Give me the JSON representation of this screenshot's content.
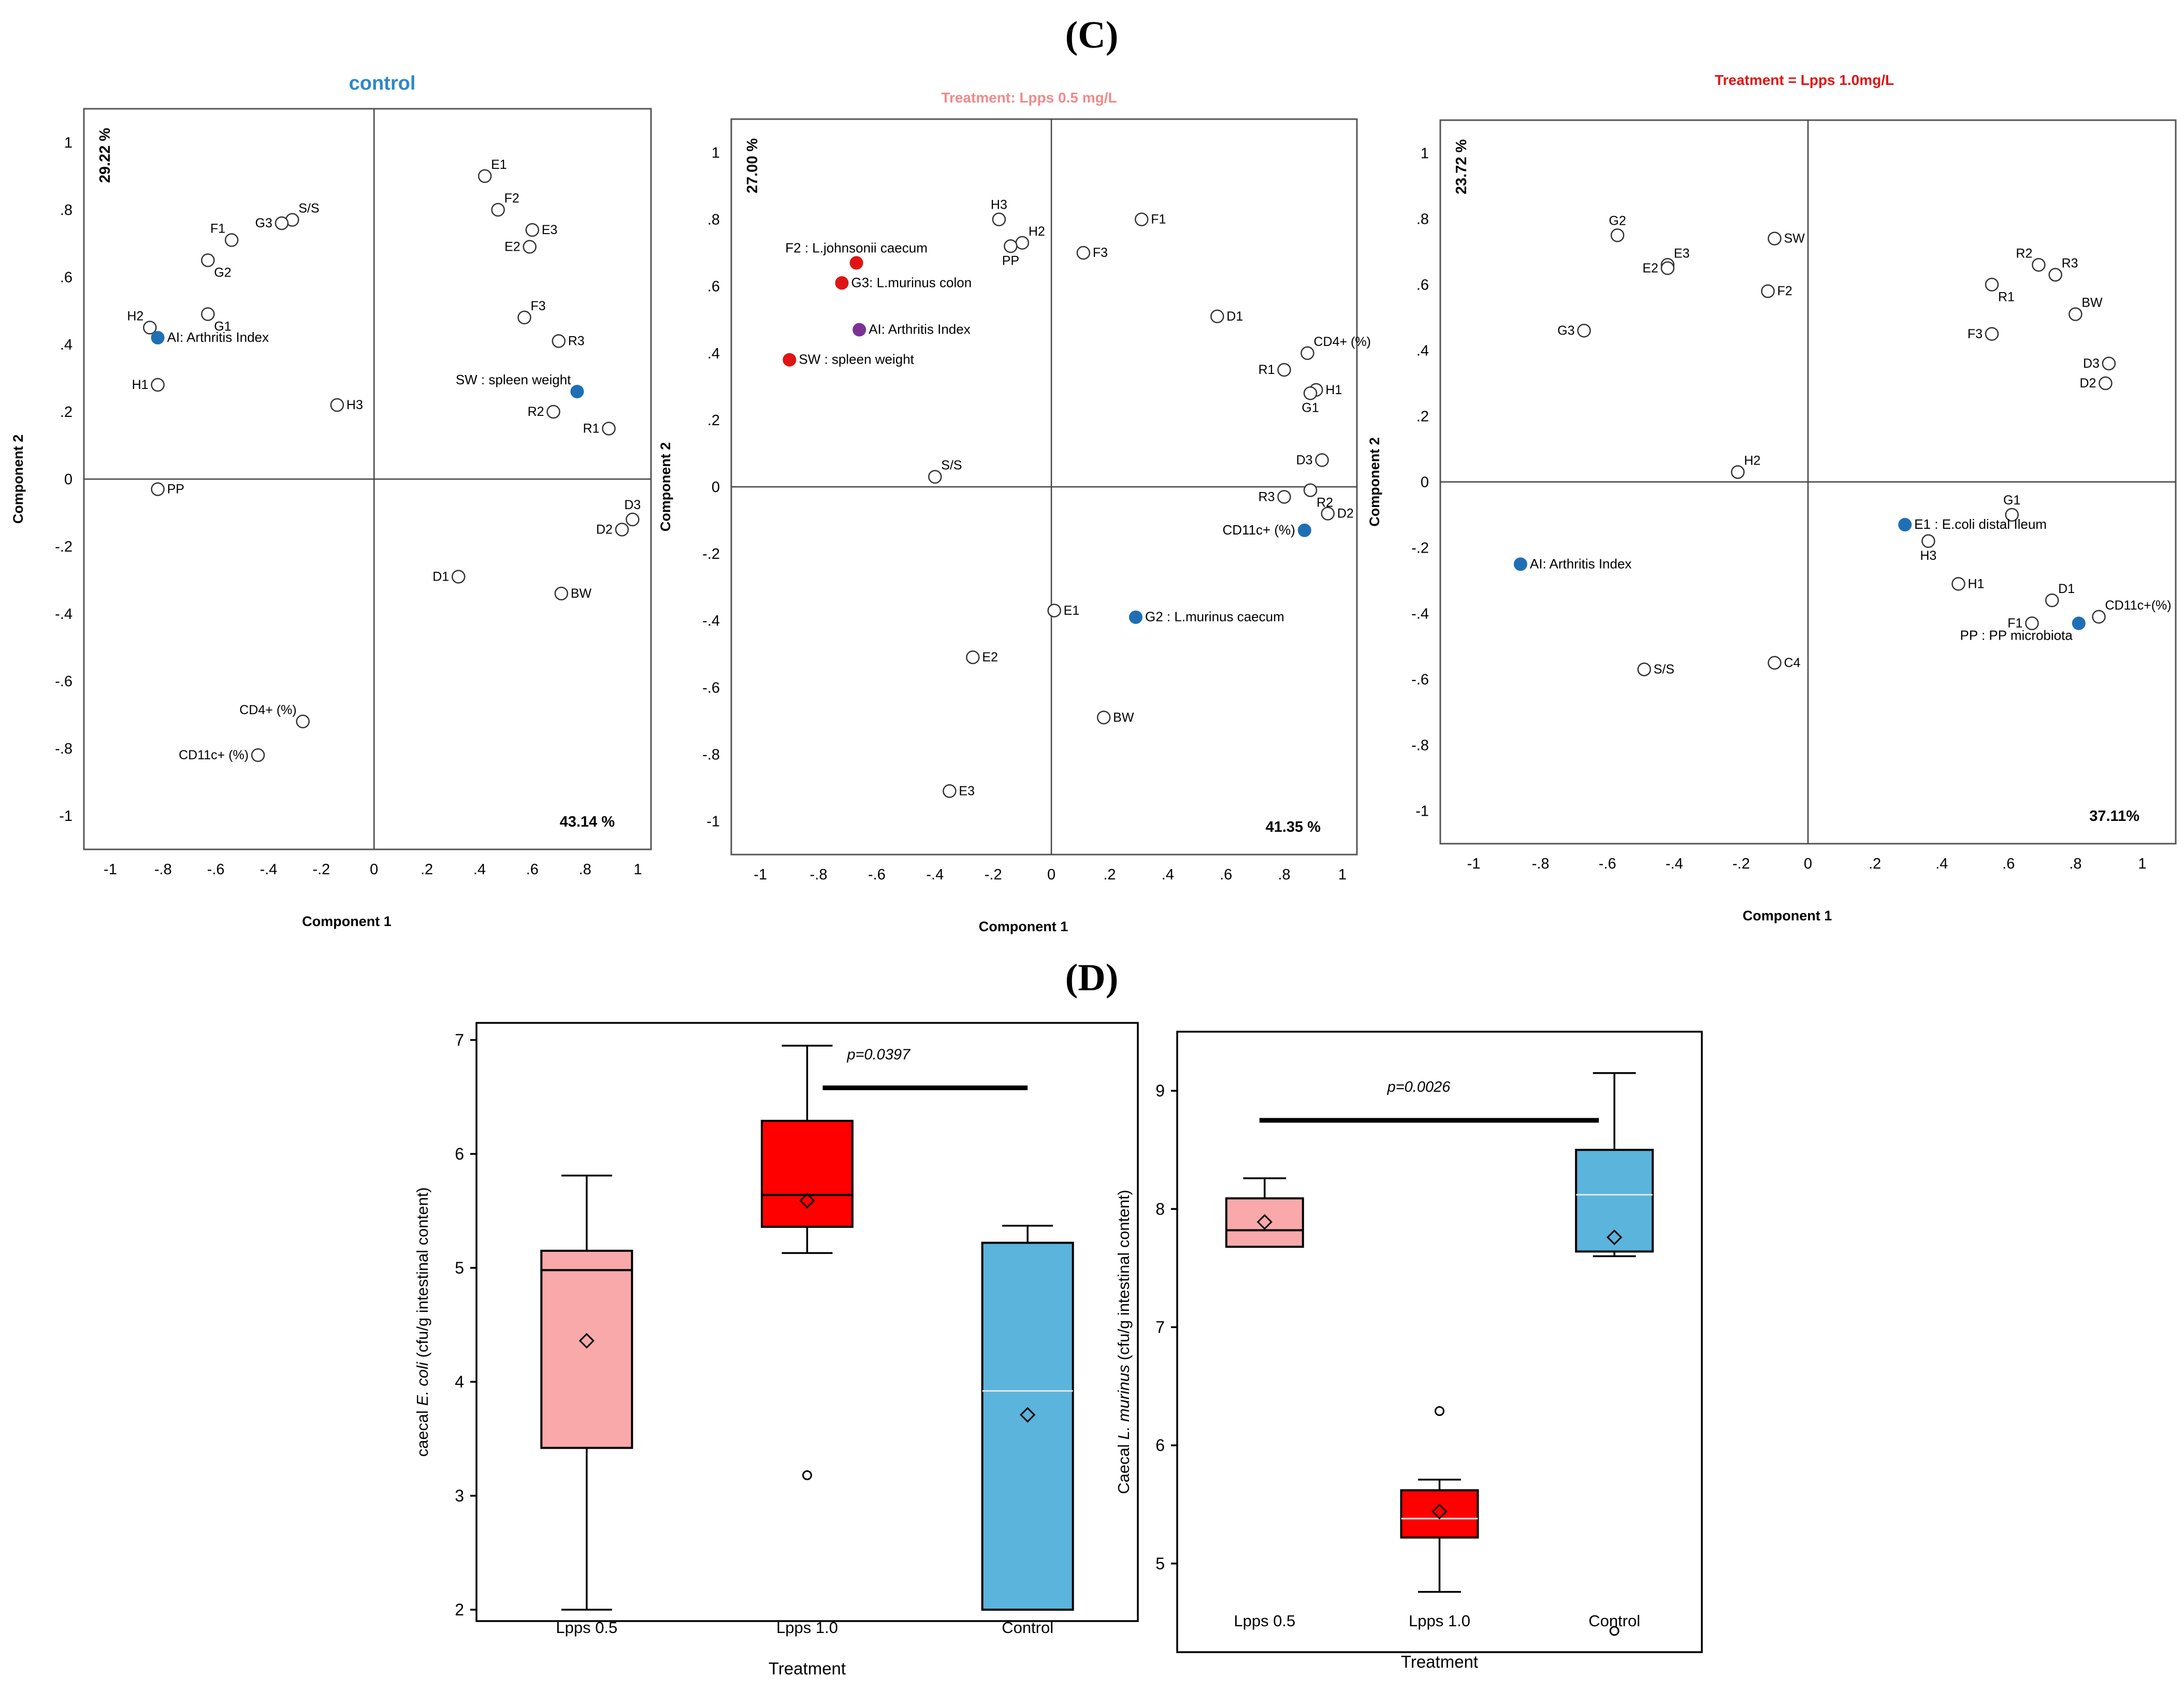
{
  "section_c_label": "(C)",
  "section_d_label": "(D)",
  "chart_data": [
    {
      "type": "scatter",
      "title": "control",
      "title_color": "#2c88c9",
      "xlabel": "Component 1",
      "ylabel": "Component 2",
      "x_variance": "43.14 %",
      "y_variance": "29.22 %",
      "xlim": [
        -1.1,
        1.05
      ],
      "ylim": [
        -1.1,
        1.1
      ],
      "xticks": [
        -1,
        -0.8,
        -0.6,
        -0.4,
        -0.2,
        0,
        0.2,
        0.4,
        0.6,
        0.8,
        1
      ],
      "yticks": [
        -1,
        -0.8,
        -0.6,
        -0.4,
        -0.2,
        0,
        0.2,
        0.4,
        0.6,
        0.8,
        1
      ],
      "points": [
        {
          "label": "E1",
          "x": 0.42,
          "y": 0.9,
          "ls": "ne"
        },
        {
          "label": "F2",
          "x": 0.47,
          "y": 0.8,
          "ls": "ne"
        },
        {
          "label": "E3",
          "x": 0.6,
          "y": 0.74,
          "ls": "e"
        },
        {
          "label": "E2",
          "x": 0.59,
          "y": 0.69,
          "ls": "w"
        },
        {
          "label": "F3",
          "x": 0.57,
          "y": 0.48,
          "ls": "ne"
        },
        {
          "label": "R3",
          "x": 0.7,
          "y": 0.41,
          "ls": "e"
        },
        {
          "label": "SW : spleen weight",
          "x": 0.77,
          "y": 0.26,
          "ls": "nw",
          "filled": true,
          "color": "#1f6fb5",
          "label_color": "#2c88c9"
        },
        {
          "label": "R2",
          "x": 0.68,
          "y": 0.2,
          "ls": "w"
        },
        {
          "label": "R1",
          "x": 0.89,
          "y": 0.15,
          "ls": "w"
        },
        {
          "label": "D3",
          "x": 0.98,
          "y": -0.12,
          "ls": "n"
        },
        {
          "label": "D2",
          "x": 0.94,
          "y": -0.15,
          "ls": "w"
        },
        {
          "label": "BW",
          "x": 0.71,
          "y": -0.34,
          "ls": "e"
        },
        {
          "label": "D1",
          "x": 0.32,
          "y": -0.29,
          "ls": "w"
        },
        {
          "label": "H3",
          "x": -0.14,
          "y": 0.22,
          "ls": "e"
        },
        {
          "label": "S/S",
          "x": -0.31,
          "y": 0.77,
          "ls": "ne"
        },
        {
          "label": "G3",
          "x": -0.35,
          "y": 0.76,
          "ls": "w"
        },
        {
          "label": "F1",
          "x": -0.54,
          "y": 0.71,
          "ls": "nw"
        },
        {
          "label": "G2",
          "x": -0.63,
          "y": 0.65,
          "ls": "se"
        },
        {
          "label": "G1",
          "x": -0.63,
          "y": 0.49,
          "ls": "se"
        },
        {
          "label": "H2",
          "x": -0.85,
          "y": 0.45,
          "ls": "nw"
        },
        {
          "label": "AI:  Arthritis Index",
          "x": -0.82,
          "y": 0.42,
          "ls": "e",
          "filled": true,
          "color": "#1f6fb5",
          "label_color": "#2c88c9"
        },
        {
          "label": "H1",
          "x": -0.82,
          "y": 0.28,
          "ls": "w"
        },
        {
          "label": "PP",
          "x": -0.82,
          "y": -0.03,
          "ls": "e"
        },
        {
          "label": "CD4+ (%)",
          "x": -0.27,
          "y": -0.72,
          "ls": "nw"
        },
        {
          "label": "CD11c+ (%)",
          "x": -0.44,
          "y": -0.82,
          "ls": "w"
        }
      ]
    },
    {
      "type": "scatter",
      "title": "Treatment: Lpps 0.5 mg/L",
      "title_color": "#f08a8a",
      "xlabel": "Component 1",
      "ylabel": "Component 2",
      "x_variance": "41.35 %",
      "y_variance": "27.00 %",
      "xlim": [
        -1.1,
        1.05
      ],
      "ylim": [
        -1.1,
        1.1
      ],
      "xticks": [
        -1,
        -0.8,
        -0.6,
        -0.4,
        -0.2,
        0,
        0.2,
        0.4,
        0.6,
        0.8,
        1
      ],
      "yticks": [
        -1,
        -0.8,
        -0.6,
        -0.4,
        -0.2,
        0,
        0.2,
        0.4,
        0.6,
        0.8,
        1
      ],
      "points": [
        {
          "label": "H3",
          "x": -0.18,
          "y": 0.8,
          "ls": "n"
        },
        {
          "label": "H2",
          "x": -0.1,
          "y": 0.73,
          "ls": "ne"
        },
        {
          "label": "PP",
          "x": -0.14,
          "y": 0.72,
          "ls": "s"
        },
        {
          "label": "F1",
          "x": 0.31,
          "y": 0.8,
          "ls": "e"
        },
        {
          "label": "F3",
          "x": 0.11,
          "y": 0.7,
          "ls": "e"
        },
        {
          "label": "F2 : L.johnsonii caecum",
          "x": -0.67,
          "y": 0.67,
          "ls": "n",
          "filled": true,
          "color": "#e01414",
          "label_color": "#e01414"
        },
        {
          "label": "G3: L.murinus colon",
          "x": -0.72,
          "y": 0.61,
          "ls": "e",
          "filled": true,
          "color": "#e01414",
          "label_color": "#e01414"
        },
        {
          "label": "AI:  Arthritis Index",
          "x": -0.66,
          "y": 0.47,
          "ls": "e",
          "filled": true,
          "color": "#7b3294",
          "label_color": "#7b3294"
        },
        {
          "label": "SW : spleen weight",
          "x": -0.9,
          "y": 0.38,
          "ls": "e",
          "filled": true,
          "color": "#e01414",
          "label_color": "#e01414"
        },
        {
          "label": "D1",
          "x": 0.57,
          "y": 0.51,
          "ls": "e"
        },
        {
          "label": "CD4+ (%)",
          "x": 0.88,
          "y": 0.4,
          "ls": "ne"
        },
        {
          "label": "R1",
          "x": 0.8,
          "y": 0.35,
          "ls": "w"
        },
        {
          "label": "H1",
          "x": 0.91,
          "y": 0.29,
          "ls": "e"
        },
        {
          "label": "G1",
          "x": 0.89,
          "y": 0.28,
          "ls": "s"
        },
        {
          "label": "D3",
          "x": 0.93,
          "y": 0.08,
          "ls": "w"
        },
        {
          "label": "R3",
          "x": 0.8,
          "y": -0.03,
          "ls": "w"
        },
        {
          "label": "R2",
          "x": 0.89,
          "y": -0.01,
          "ls": "se"
        },
        {
          "label": "D2",
          "x": 0.95,
          "y": -0.08,
          "ls": "e"
        },
        {
          "label": "CD11c+ (%)",
          "x": 0.87,
          "y": -0.13,
          "ls": "w",
          "filled": true,
          "color": "#1f6fb5",
          "label_color": "#2c88c9"
        },
        {
          "label": "S/S",
          "x": -0.4,
          "y": 0.03,
          "ls": "ne"
        },
        {
          "label": "E1",
          "x": 0.01,
          "y": -0.37,
          "ls": "e"
        },
        {
          "label": "G2 : L.murinus caecum",
          "x": 0.29,
          "y": -0.39,
          "ls": "e",
          "filled": true,
          "color": "#1f6fb5",
          "label_color": "#2c88c9"
        },
        {
          "label": "E2",
          "x": -0.27,
          "y": -0.51,
          "ls": "e"
        },
        {
          "label": "BW",
          "x": 0.18,
          "y": -0.69,
          "ls": "e"
        },
        {
          "label": "E3",
          "x": -0.35,
          "y": -0.91,
          "ls": "e"
        }
      ]
    },
    {
      "type": "scatter",
      "title": "Treatment = Lpps 1.0mg/L",
      "title_color": "#e01414",
      "xlabel": "Component 1",
      "ylabel": "Component 2",
      "x_variance": "37.11%",
      "y_variance": "23.72 %",
      "xlim": [
        -1.1,
        1.1
      ],
      "ylim": [
        -1.1,
        1.1
      ],
      "xticks": [
        -1,
        -0.8,
        -0.6,
        -0.4,
        -0.2,
        0,
        0.2,
        0.4,
        0.6,
        0.8,
        1
      ],
      "yticks": [
        -1,
        -0.8,
        -0.6,
        -0.4,
        -0.2,
        0,
        0.2,
        0.4,
        0.6,
        0.8,
        1
      ],
      "points": [
        {
          "label": "G2",
          "x": -0.57,
          "y": 0.75,
          "ls": "n"
        },
        {
          "label": "E3",
          "x": -0.42,
          "y": 0.66,
          "ls": "ne"
        },
        {
          "label": "E2",
          "x": -0.42,
          "y": 0.65,
          "ls": "w"
        },
        {
          "label": "SW",
          "x": -0.1,
          "y": 0.74,
          "ls": "e"
        },
        {
          "label": "F2",
          "x": -0.12,
          "y": 0.58,
          "ls": "e"
        },
        {
          "label": "G3",
          "x": -0.67,
          "y": 0.46,
          "ls": "w"
        },
        {
          "label": "H2",
          "x": -0.21,
          "y": 0.03,
          "ls": "ne"
        },
        {
          "label": "R2",
          "x": 0.69,
          "y": 0.66,
          "ls": "nw"
        },
        {
          "label": "R3",
          "x": 0.74,
          "y": 0.63,
          "ls": "ne"
        },
        {
          "label": "R1",
          "x": 0.55,
          "y": 0.6,
          "ls": "se"
        },
        {
          "label": "BW",
          "x": 0.8,
          "y": 0.51,
          "ls": "ne"
        },
        {
          "label": "F3",
          "x": 0.55,
          "y": 0.45,
          "ls": "w"
        },
        {
          "label": "D3",
          "x": 0.9,
          "y": 0.36,
          "ls": "w"
        },
        {
          "label": "D2",
          "x": 0.89,
          "y": 0.3,
          "ls": "w"
        },
        {
          "label": "G1",
          "x": 0.61,
          "y": -0.1,
          "ls": "n"
        },
        {
          "label": "E1 : E.coli distal Ileum",
          "x": 0.29,
          "y": -0.13,
          "ls": "e",
          "filled": true,
          "color": "#1f6fb5",
          "label_color": "#2c88c9"
        },
        {
          "label": "H3",
          "x": 0.36,
          "y": -0.18,
          "ls": "s"
        },
        {
          "label": "H1",
          "x": 0.45,
          "y": -0.31,
          "ls": "e"
        },
        {
          "label": "D1",
          "x": 0.73,
          "y": -0.36,
          "ls": "ne"
        },
        {
          "label": "CD11c+(%)",
          "x": 0.87,
          "y": -0.41,
          "ls": "ne"
        },
        {
          "label": "F1",
          "x": 0.67,
          "y": -0.43,
          "ls": "w"
        },
        {
          "label": "PP : PP microbiota",
          "x": 0.81,
          "y": -0.43,
          "ls": "sw",
          "filled": true,
          "color": "#1f6fb5",
          "label_color": "#2c88c9"
        },
        {
          "label": "AI:  Arthritis Index",
          "x": -0.86,
          "y": -0.25,
          "ls": "e",
          "filled": true,
          "color": "#1f6fb5",
          "label_color": "#2c88c9"
        },
        {
          "label": "S/S",
          "x": -0.49,
          "y": -0.57,
          "ls": "e"
        },
        {
          "label": "C4",
          "x": -0.1,
          "y": -0.55,
          "ls": "e"
        }
      ]
    },
    {
      "type": "box",
      "title": "",
      "xlabel": "Treatment",
      "ylabel_pre": "caecal ",
      "ylabel_italic": "E. coli",
      "ylabel_post": " (cfu/g intestinal content)",
      "ylim": [
        1.9,
        7.15
      ],
      "yticks": [
        2,
        3,
        4,
        5,
        6,
        7
      ],
      "annotation": "p=0.0397",
      "sig_line": {
        "from": "Lpps 1.0",
        "to": "Control",
        "y": 6.58
      },
      "boxes": [
        {
          "category": "Lpps  0.5",
          "whisk_low": 2.0,
          "q1": 3.42,
          "median": 4.98,
          "q3": 5.15,
          "whisk_high": 5.81,
          "mean": 4.36,
          "outliers": [],
          "color": "#f9a9a9",
          "median_style": "dark"
        },
        {
          "category": "Lpps 1.0",
          "whisk_low": 5.13,
          "q1": 5.36,
          "median": 5.64,
          "q3": 6.29,
          "whisk_high": 6.95,
          "mean": 5.59,
          "outliers": [
            3.18
          ],
          "color": "#ff0000",
          "median_style": "dark"
        },
        {
          "category": "Control",
          "whisk_low": 2.0,
          "q1": 2.0,
          "median": 3.92,
          "q3": 5.22,
          "whisk_high": 5.37,
          "mean": 3.71,
          "outliers": [],
          "color": "#5ab4dc",
          "median_style": "light"
        }
      ]
    },
    {
      "type": "box",
      "title": "",
      "xlabel": "Treatment",
      "ylabel_pre": "Caecal ",
      "ylabel_italic": "L. murinus",
      "ylabel_post": " (cfu/g intestinal content)",
      "ylim": [
        4.25,
        9.5
      ],
      "yticks": [
        5,
        6,
        7,
        8,
        9
      ],
      "annotation": "p=0.0026",
      "sig_line": {
        "from": "Lpps  0.5",
        "to": "Control",
        "y": 8.75
      },
      "boxes": [
        {
          "category": "Lpps  0.5",
          "whisk_low": 7.68,
          "q1": 7.68,
          "median": 7.82,
          "q3": 8.09,
          "whisk_high": 8.26,
          "mean": 7.89,
          "outliers": [],
          "color": "#f9a9a9",
          "median_style": "dark"
        },
        {
          "category": "Lpps  1.0",
          "whisk_low": 4.76,
          "q1": 5.22,
          "median": 5.38,
          "q3": 5.62,
          "whisk_high": 5.71,
          "mean": 5.44,
          "outliers": [
            6.29
          ],
          "color": "#ff0000",
          "median_style": "light"
        },
        {
          "category": "Control",
          "whisk_low": 7.6,
          "q1": 7.64,
          "median": 8.12,
          "q3": 8.5,
          "whisk_high": 9.15,
          "mean": 7.76,
          "outliers": [
            4.43
          ],
          "color": "#5ab4dc",
          "median_style": "light"
        }
      ]
    }
  ]
}
